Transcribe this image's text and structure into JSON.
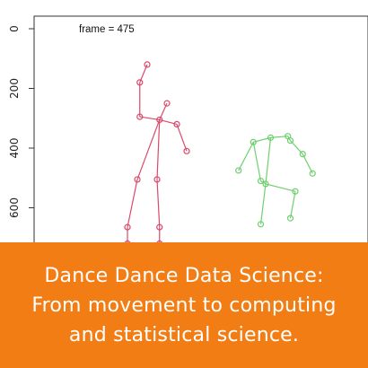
{
  "banner": {
    "line1": "Dance Dance Data Science:",
    "line2": "From movement to computing",
    "line3": "and statistical science.",
    "color": "#f27d14"
  },
  "chart_data": {
    "type": "scatter",
    "annotation": "frame = 475",
    "y_ticks": [
      "0",
      "200",
      "400",
      "600"
    ],
    "y_inverted": true,
    "ylim": [
      0,
      800
    ],
    "grid": false,
    "series": [
      {
        "color": "#d94a6a",
        "points": [
          [
            -120,
            120
          ],
          [
            -135,
            180
          ],
          [
            -135,
            295
          ],
          [
            -95,
            305
          ],
          [
            -80,
            250
          ],
          [
            -60,
            320
          ],
          [
            -40,
            410
          ],
          [
            -140,
            505
          ],
          [
            -100,
            505
          ],
          [
            -160,
            665
          ],
          [
            -95,
            665
          ],
          [
            -160,
            720
          ],
          [
            -95,
            720
          ]
        ],
        "edges": [
          [
            0,
            1
          ],
          [
            1,
            2
          ],
          [
            2,
            3
          ],
          [
            3,
            4
          ],
          [
            3,
            5
          ],
          [
            5,
            6
          ],
          [
            3,
            7
          ],
          [
            3,
            8
          ],
          [
            7,
            9
          ],
          [
            8,
            10
          ],
          [
            9,
            11
          ],
          [
            10,
            12
          ]
        ]
      },
      {
        "color": "#6fcf6f",
        "points": [
          [
            130,
            365
          ],
          [
            165,
            360
          ],
          [
            170,
            375
          ],
          [
            95,
            380
          ],
          [
            195,
            420
          ],
          [
            215,
            485
          ],
          [
            65,
            475
          ],
          [
            110,
            510
          ],
          [
            120,
            520
          ],
          [
            180,
            545
          ],
          [
            170,
            635
          ],
          [
            110,
            655
          ]
        ],
        "edges": [
          [
            0,
            1
          ],
          [
            1,
            2
          ],
          [
            0,
            3
          ],
          [
            2,
            4
          ],
          [
            4,
            5
          ],
          [
            3,
            6
          ],
          [
            3,
            7
          ],
          [
            0,
            8
          ],
          [
            7,
            8
          ],
          [
            8,
            9
          ],
          [
            9,
            10
          ],
          [
            8,
            11
          ]
        ]
      }
    ]
  }
}
